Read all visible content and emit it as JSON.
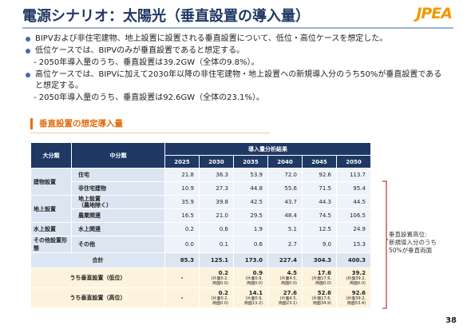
{
  "header": {
    "title": "電源シナリオ：太陽光（垂直設置の導入量）",
    "logo": "JPEA"
  },
  "bullets": [
    {
      "text": "BIPVおよび非住宅建物、地上設置に設置される垂直設置について、低位・高位ケースを想定した。"
    },
    {
      "text": "低位ケースでは、BIPVのみが垂直設置であると想定する。",
      "note": "- 2050年導入量のうち、垂直設置は39.2GW（全体の9.8%）。"
    },
    {
      "text": "高位ケースでは、BIPVに加えて2030年以降の非住宅建物・地上設置への新規導入分のうち50%が垂直設置であると想定する。",
      "note": "- 2050年導入量のうち、垂直設置は92.6GW（全体の23.1%）。"
    }
  ],
  "section": "垂直設置の想定導入量",
  "table": {
    "headers": {
      "category": "大分類",
      "subcategory": "中分類",
      "group": "導入量分析結果",
      "years": [
        2025,
        2030,
        2035,
        2040,
        2045,
        2050
      ]
    },
    "groups": [
      {
        "category": "建物設置",
        "rows": [
          {
            "name": [
              "住宅"
            ],
            "values": [
              "21.8",
              "36.3",
              "53.9",
              "72.0",
              "92.6",
              "113.7"
            ]
          },
          {
            "name": [
              "非住宅建物"
            ],
            "values": [
              "10.9",
              "27.3",
              "44.8",
              "55.6",
              "71.5",
              "95.4"
            ]
          }
        ]
      },
      {
        "category": "地上設置",
        "rows": [
          {
            "name": [
              "地上設置",
              "（農地除く）"
            ],
            "values": [
              "35.9",
              "39.8",
              "42.5",
              "43.7",
              "44.3",
              "44.5"
            ]
          },
          {
            "name": [
              "農業関連"
            ],
            "values": [
              "16.5",
              "21.0",
              "29.5",
              "48.4",
              "74.5",
              "106.5"
            ]
          }
        ]
      },
      {
        "category": "水上設置",
        "rows": [
          {
            "name": [
              "水上関連"
            ],
            "values": [
              "0.2",
              "0.6",
              "1.9",
              "5.1",
              "12.5",
              "24.9"
            ]
          }
        ]
      },
      {
        "category": "その他設置形態",
        "rows": [
          {
            "name": [
              "その他"
            ],
            "values": [
              "0.0",
              "0.1",
              "0.6",
              "2.7",
              "9.0",
              "15.3"
            ]
          }
        ]
      }
    ],
    "total": {
      "label": "合計",
      "values": [
        "85.3",
        "125.1",
        "173.0",
        "227.4",
        "304.3",
        "400.3"
      ]
    },
    "vertical": [
      {
        "label": "うち垂直設置（低位）",
        "values": [
          {
            "value": "-"
          },
          {
            "value": "0.2",
            "detail": [
              "(片面0.2,",
              "両面0.0)"
            ]
          },
          {
            "value": "0.9",
            "detail": [
              "(片面0.9,",
              "両面0.0)"
            ]
          },
          {
            "value": "4.5",
            "detail": [
              "(片面4.5,",
              "両面0.0)"
            ]
          },
          {
            "value": "17.6",
            "detail": [
              "(片面17.6,",
              "両面0.0)"
            ]
          },
          {
            "value": "39.2",
            "detail": [
              "(片面39.2,",
              "両面0.0)"
            ]
          }
        ]
      },
      {
        "label": "うち垂直設置（高位）",
        "values": [
          {
            "value": "-"
          },
          {
            "value": "0.2",
            "detail": [
              "(片面0.2,",
              "両面0.0)"
            ]
          },
          {
            "value": "14.1",
            "detail": [
              "(片面0.9,",
              "両面13.2)"
            ]
          },
          {
            "value": "27.6",
            "detail": [
              "(片面4.5,",
              "両面23.1)"
            ]
          },
          {
            "value": "52.6",
            "detail": [
              "(片面17.6,",
              "両面34.9)"
            ]
          },
          {
            "value": "92.6",
            "detail": [
              "(片面39.2,",
              "両面53.4)"
            ]
          }
        ]
      }
    ]
  },
  "annotation": [
    "垂直設置高位:",
    "新規導入分のうち",
    "50%が垂直両面"
  ],
  "page_number": "38"
}
